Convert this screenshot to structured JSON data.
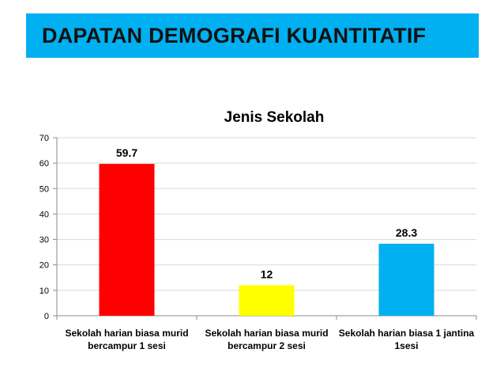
{
  "slide": {
    "title": "DAPATAN DEMOGRAFI KUANTITATIF"
  },
  "colors": {
    "banner": "#00B0F0",
    "gridline": "#D9D9D9",
    "axis": "#888888"
  },
  "chart_data": {
    "type": "bar",
    "title": "Jenis Sekolah",
    "xlabel": "",
    "ylabel": "",
    "ylim": [
      0,
      70
    ],
    "yticks": [
      0,
      10,
      20,
      30,
      40,
      50,
      60,
      70
    ],
    "grid": true,
    "legend": "none",
    "categories": [
      [
        "Sekolah harian biasa murid",
        "bercampur 1 sesi"
      ],
      [
        "Sekolah harian biasa murid",
        "bercampur 2 sesi"
      ],
      [
        "Sekolah harian biasa 1 jantina",
        "1sesi"
      ]
    ],
    "values": [
      59.7,
      12,
      28.3
    ],
    "value_labels": [
      "59.7",
      "12",
      "28.3"
    ],
    "bar_colors": [
      "#FF0000",
      "#FFFF00",
      "#00B0F0"
    ]
  }
}
